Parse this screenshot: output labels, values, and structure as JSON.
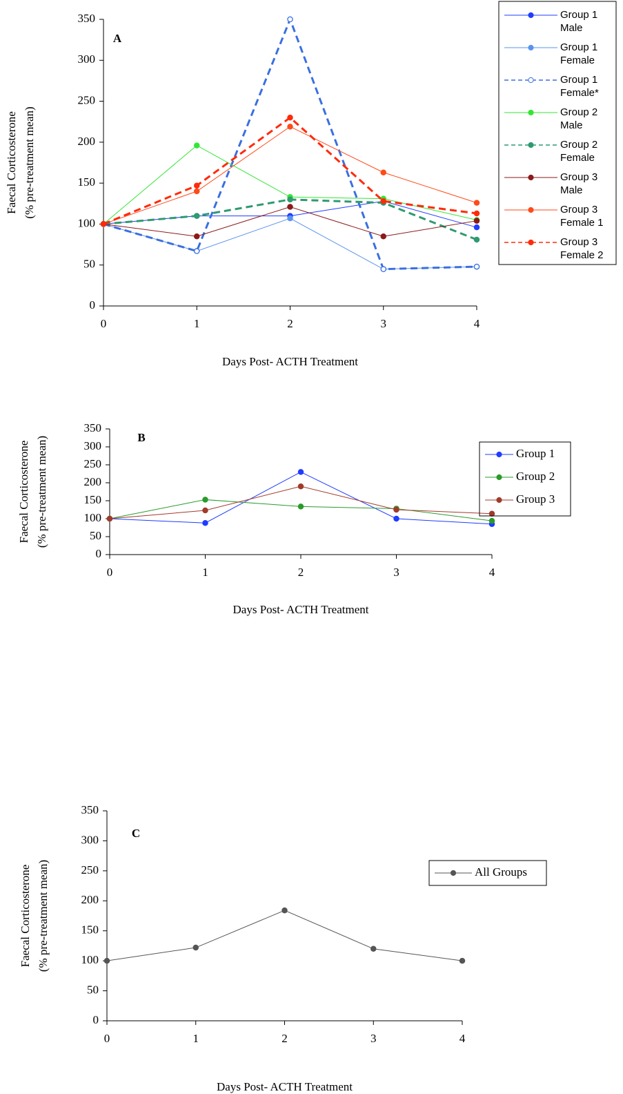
{
  "chart_data": [
    {
      "type": "line",
      "label": "A",
      "xlabel": "Days Post- ACTH Treatment",
      "ylabel": [
        "Faecal Corticosterone",
        "(% pre-treatment mean)"
      ],
      "x": [
        0,
        1,
        2,
        3,
        4
      ],
      "xlim": [
        0,
        4
      ],
      "xticks": [
        0,
        1,
        2,
        3,
        4
      ],
      "ylim": [
        0,
        350
      ],
      "yticks": [
        0,
        50,
        100,
        150,
        200,
        250,
        300,
        350
      ],
      "legend": "outside-right",
      "series": [
        {
          "name": "Group 1 Male",
          "color": "#1f3cff",
          "values": [
            100,
            110,
            110,
            128,
            96
          ]
        },
        {
          "name": "Group 1 Female",
          "color": "#5a93ee",
          "values": [
            100,
            67,
            107,
            45,
            48
          ]
        },
        {
          "name": "Group 1 Female*",
          "color": "#3a6fe0",
          "dash": true,
          "hollow": true,
          "values": [
            100,
            67,
            350,
            45,
            48
          ]
        },
        {
          "name": "Group 2 Male",
          "color": "#33e633",
          "values": [
            100,
            196,
            133,
            131,
            105
          ]
        },
        {
          "name": "Group 2 Female",
          "color": "#2e9a70",
          "dash": true,
          "values": [
            100,
            110,
            130,
            126,
            81
          ]
        },
        {
          "name": "Group 3 Male",
          "color": "#8b1a1a",
          "values": [
            100,
            85,
            121,
            85,
            104
          ]
        },
        {
          "name": "Group 3 Female 1",
          "color": "#ff4a1a",
          "values": [
            100,
            140,
            219,
            163,
            126
          ]
        },
        {
          "name": "Group 3 Female 2",
          "color": "#ff2a0a",
          "dash": true,
          "values": [
            100,
            147,
            230,
            128,
            113
          ]
        }
      ]
    },
    {
      "type": "line",
      "label": "B",
      "xlabel": "Days Post- ACTH Treatment",
      "ylabel": [
        "Faecal Corticosterone",
        "(% pre-treatment mean)"
      ],
      "x": [
        0,
        1,
        2,
        3,
        4
      ],
      "xlim": [
        0,
        4
      ],
      "xticks": [
        0,
        1,
        2,
        3,
        4
      ],
      "ylim": [
        0,
        350
      ],
      "yticks": [
        0,
        50,
        100,
        150,
        200,
        250,
        300,
        350
      ],
      "legend": "top-right",
      "series": [
        {
          "name": "Group 1",
          "color": "#1f3cff",
          "values": [
            100,
            88,
            230,
            100,
            85
          ]
        },
        {
          "name": "Group 2",
          "color": "#2a9a2a",
          "values": [
            100,
            153,
            134,
            128,
            94
          ]
        },
        {
          "name": "Group 3",
          "color": "#a03a2a",
          "values": [
            100,
            123,
            190,
            125,
            114
          ]
        }
      ]
    },
    {
      "type": "line",
      "label": "C",
      "xlabel": "Days Post- ACTH Treatment",
      "ylabel": [
        "Faecal Corticosterone",
        "(% pre-treatment mean)"
      ],
      "x": [
        0,
        1,
        2,
        3,
        4
      ],
      "xlim": [
        0,
        4
      ],
      "xticks": [
        0,
        1,
        2,
        3,
        4
      ],
      "ylim": [
        0,
        350
      ],
      "yticks": [
        0,
        50,
        100,
        150,
        200,
        250,
        300,
        350
      ],
      "legend": "right",
      "series": [
        {
          "name": "All Groups",
          "color": "#555555",
          "values": [
            100,
            122,
            184,
            120,
            100
          ]
        }
      ]
    }
  ]
}
